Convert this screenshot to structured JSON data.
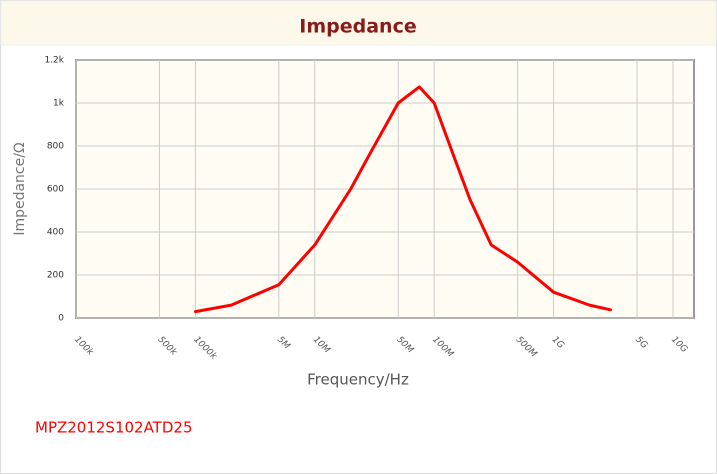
{
  "chart_data": {
    "type": "line",
    "title": "Impedance",
    "x_label": "Frequency/Hz",
    "y_label": "Impedance/Ω",
    "log_x": true,
    "grid": true,
    "x": [
      1000000,
      2000000,
      5000000,
      10000000,
      20000000,
      30000000,
      50000000,
      75000000,
      100000000,
      150000000,
      200000000,
      300000000,
      500000000,
      1000000000,
      2000000000,
      3000000000
    ],
    "series": [
      {
        "name": "MPZ2012S102ATD25",
        "color": "#ff0000",
        "values": [
          30,
          60,
          155,
          340,
          600,
          780,
          1000,
          1075,
          1000,
          735,
          550,
          340,
          260,
          120,
          60,
          38
        ]
      }
    ],
    "xlim": [
      100000,
      15000000000
    ],
    "xticks": [
      {
        "value": 100000,
        "label": "100k"
      },
      {
        "value": 500000,
        "label": "500k"
      },
      {
        "value": 1000000,
        "label": "1000k"
      },
      {
        "value": 5000000,
        "label": "5M"
      },
      {
        "value": 10000000,
        "label": "10M"
      },
      {
        "value": 50000000,
        "label": "50M"
      },
      {
        "value": 100000000,
        "label": "100M"
      },
      {
        "value": 500000000,
        "label": "500M"
      },
      {
        "value": 1000000000,
        "label": "1G"
      },
      {
        "value": 5000000000,
        "label": "5G"
      },
      {
        "value": 10000000000,
        "label": "10G"
      }
    ],
    "ylim": [
      0,
      1200
    ],
    "yticks": [
      0,
      200,
      400,
      600,
      800,
      {
        "value": 1000,
        "label": "1k"
      },
      {
        "value": 1200,
        "label": "1.2k"
      }
    ]
  }
}
